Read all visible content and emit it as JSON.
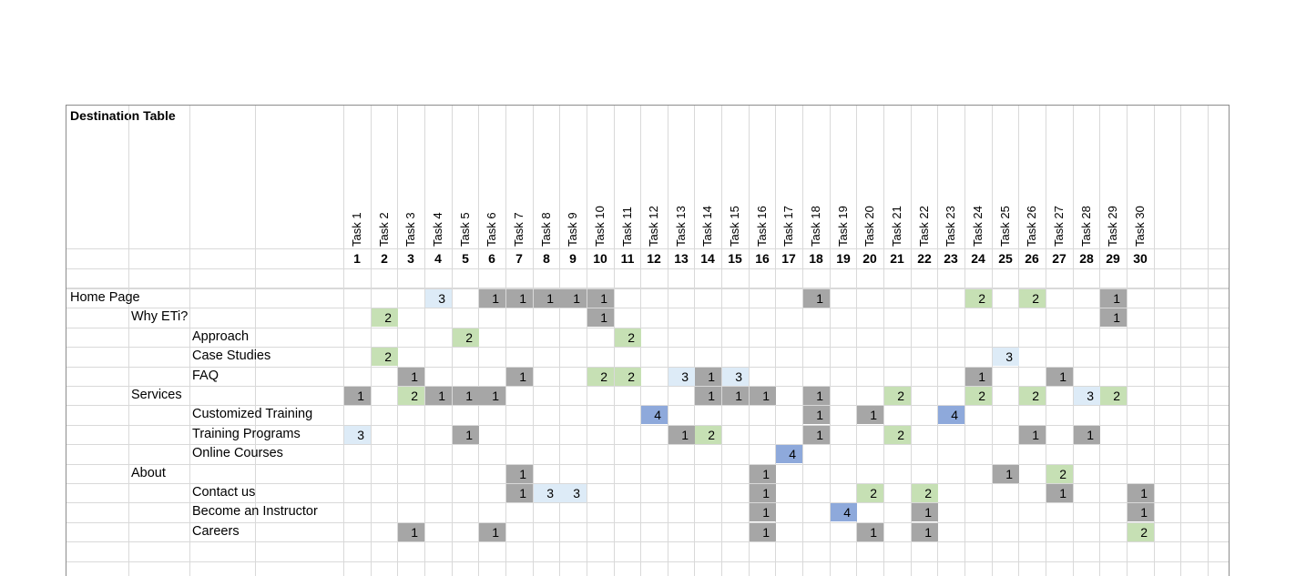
{
  "sheet": {
    "title": "Destination Table",
    "colors": {
      "gray": "#a6a6a6",
      "green": "#c6e0b4",
      "lightblue": "#ddebf7",
      "blue": "#8ea9db",
      "grid": "#d9d9d9"
    },
    "task_headers": [
      "Task 1",
      "Task 2",
      "Task 3",
      "Task 4",
      "Task 5",
      "Task 6",
      "Task 7",
      "Task 8",
      "Task 9",
      "Task 10",
      "Task 11",
      "Task 12",
      "Task 13",
      "Task 14",
      "Task 15",
      "Task 16",
      "Task 17",
      "Task 18",
      "Task 19",
      "Task 20",
      "Task 21",
      "Task 22",
      "Task 23",
      "Task 24",
      "Task 25",
      "Task 26",
      "Task 27",
      "Task 28",
      "Task 29",
      "Task 30"
    ],
    "task_numbers": [
      "1",
      "2",
      "3",
      "4",
      "5",
      "6",
      "7",
      "8",
      "9",
      "10",
      "11",
      "12",
      "13",
      "14",
      "15",
      "16",
      "17",
      "18",
      "19",
      "20",
      "21",
      "22",
      "23",
      "24",
      "25",
      "26",
      "27",
      "28",
      "29",
      "30"
    ],
    "rows": [
      {
        "label": "Home Page",
        "level": 0,
        "cells": [
          {
            "task": 4,
            "value": "3",
            "color": "lightblue"
          },
          {
            "task": 6,
            "value": "1",
            "color": "gray"
          },
          {
            "task": 7,
            "value": "1",
            "color": "gray"
          },
          {
            "task": 8,
            "value": "1",
            "color": "gray"
          },
          {
            "task": 9,
            "value": "1",
            "color": "gray"
          },
          {
            "task": 10,
            "value": "1",
            "color": "gray"
          },
          {
            "task": 18,
            "value": "1",
            "color": "gray"
          },
          {
            "task": 24,
            "value": "2",
            "color": "green"
          },
          {
            "task": 26,
            "value": "2",
            "color": "green"
          },
          {
            "task": 29,
            "value": "1",
            "color": "gray"
          }
        ]
      },
      {
        "label": "Why ETi?",
        "level": 1,
        "cells": [
          {
            "task": 2,
            "value": "2",
            "color": "green"
          },
          {
            "task": 10,
            "value": "1",
            "color": "gray"
          },
          {
            "task": 29,
            "value": "1",
            "color": "gray"
          }
        ]
      },
      {
        "label": "Approach",
        "level": 2,
        "cells": [
          {
            "task": 5,
            "value": "2",
            "color": "green"
          },
          {
            "task": 11,
            "value": "2",
            "color": "green"
          }
        ]
      },
      {
        "label": "Case Studies",
        "level": 2,
        "cells": [
          {
            "task": 2,
            "value": "2",
            "color": "green"
          },
          {
            "task": 25,
            "value": "3",
            "color": "lightblue"
          }
        ]
      },
      {
        "label": "FAQ",
        "level": 2,
        "cells": [
          {
            "task": 3,
            "value": "1",
            "color": "gray"
          },
          {
            "task": 7,
            "value": "1",
            "color": "gray"
          },
          {
            "task": 10,
            "value": "2",
            "color": "green"
          },
          {
            "task": 11,
            "value": "2",
            "color": "green"
          },
          {
            "task": 13,
            "value": "3",
            "color": "lightblue"
          },
          {
            "task": 14,
            "value": "1",
            "color": "gray"
          },
          {
            "task": 15,
            "value": "3",
            "color": "lightblue"
          },
          {
            "task": 24,
            "value": "1",
            "color": "gray"
          },
          {
            "task": 27,
            "value": "1",
            "color": "gray"
          }
        ]
      },
      {
        "label": "Services",
        "level": 1,
        "cells": [
          {
            "task": 1,
            "value": "1",
            "color": "gray"
          },
          {
            "task": 3,
            "value": "2",
            "color": "green"
          },
          {
            "task": 4,
            "value": "1",
            "color": "gray"
          },
          {
            "task": 5,
            "value": "1",
            "color": "gray"
          },
          {
            "task": 6,
            "value": "1",
            "color": "gray"
          },
          {
            "task": 14,
            "value": "1",
            "color": "gray"
          },
          {
            "task": 15,
            "value": "1",
            "color": "gray"
          },
          {
            "task": 16,
            "value": "1",
            "color": "gray"
          },
          {
            "task": 18,
            "value": "1",
            "color": "gray"
          },
          {
            "task": 21,
            "value": "2",
            "color": "green"
          },
          {
            "task": 24,
            "value": "2",
            "color": "green"
          },
          {
            "task": 26,
            "value": "2",
            "color": "green"
          },
          {
            "task": 28,
            "value": "3",
            "color": "lightblue"
          },
          {
            "task": 29,
            "value": "2",
            "color": "green"
          }
        ]
      },
      {
        "label": "Customized Training",
        "level": 2,
        "cells": [
          {
            "task": 12,
            "value": "4",
            "color": "blue"
          },
          {
            "task": 18,
            "value": "1",
            "color": "gray"
          },
          {
            "task": 20,
            "value": "1",
            "color": "gray"
          },
          {
            "task": 23,
            "value": "4",
            "color": "blue"
          }
        ]
      },
      {
        "label": "Training Programs",
        "level": 2,
        "cells": [
          {
            "task": 1,
            "value": "3",
            "color": "lightblue"
          },
          {
            "task": 5,
            "value": "1",
            "color": "gray"
          },
          {
            "task": 13,
            "value": "1",
            "color": "gray"
          },
          {
            "task": 14,
            "value": "2",
            "color": "green"
          },
          {
            "task": 18,
            "value": "1",
            "color": "gray"
          },
          {
            "task": 21,
            "value": "2",
            "color": "green"
          },
          {
            "task": 26,
            "value": "1",
            "color": "gray"
          },
          {
            "task": 28,
            "value": "1",
            "color": "gray"
          }
        ]
      },
      {
        "label": "Online Courses",
        "level": 2,
        "cells": [
          {
            "task": 17,
            "value": "4",
            "color": "blue"
          }
        ]
      },
      {
        "label": "About",
        "level": 1,
        "cells": [
          {
            "task": 7,
            "value": "1",
            "color": "gray"
          },
          {
            "task": 16,
            "value": "1",
            "color": "gray"
          },
          {
            "task": 25,
            "value": "1",
            "color": "gray"
          },
          {
            "task": 27,
            "value": "2",
            "color": "green"
          }
        ]
      },
      {
        "label": "Contact us",
        "level": 2,
        "cells": [
          {
            "task": 7,
            "value": "1",
            "color": "gray"
          },
          {
            "task": 8,
            "value": "3",
            "color": "lightblue"
          },
          {
            "task": 9,
            "value": "3",
            "color": "lightblue"
          },
          {
            "task": 16,
            "value": "1",
            "color": "gray"
          },
          {
            "task": 20,
            "value": "2",
            "color": "green"
          },
          {
            "task": 22,
            "value": "2",
            "color": "green"
          },
          {
            "task": 27,
            "value": "1",
            "color": "gray"
          },
          {
            "task": 30,
            "value": "1",
            "color": "gray"
          }
        ]
      },
      {
        "label": "Become an Instructor",
        "level": 2,
        "cells": [
          {
            "task": 16,
            "value": "1",
            "color": "gray"
          },
          {
            "task": 19,
            "value": "4",
            "color": "blue"
          },
          {
            "task": 22,
            "value": "1",
            "color": "gray"
          },
          {
            "task": 30,
            "value": "1",
            "color": "gray"
          }
        ]
      },
      {
        "label": "Careers",
        "level": 2,
        "cells": [
          {
            "task": 3,
            "value": "1",
            "color": "gray"
          },
          {
            "task": 6,
            "value": "1",
            "color": "gray"
          },
          {
            "task": 16,
            "value": "1",
            "color": "gray"
          },
          {
            "task": 20,
            "value": "1",
            "color": "gray"
          },
          {
            "task": 22,
            "value": "1",
            "color": "gray"
          },
          {
            "task": 30,
            "value": "2",
            "color": "green"
          }
        ]
      }
    ]
  }
}
